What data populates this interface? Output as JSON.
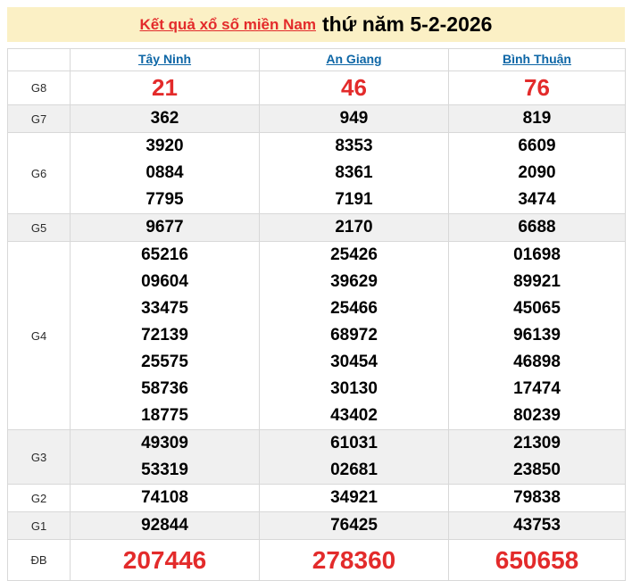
{
  "header": {
    "title_link": "Kết quả xổ số miền Nam",
    "title_rest": "thứ năm 5-2-2026"
  },
  "table": {
    "columns": [
      "Tây Ninh",
      "An Giang",
      "Bình Thuận"
    ],
    "rows": [
      {
        "label": "G8",
        "style": "big-red",
        "stripe": false,
        "values": [
          [
            "21"
          ],
          [
            "46"
          ],
          [
            "76"
          ]
        ]
      },
      {
        "label": "G7",
        "style": "normal",
        "stripe": true,
        "values": [
          [
            "362"
          ],
          [
            "949"
          ],
          [
            "819"
          ]
        ]
      },
      {
        "label": "G6",
        "style": "normal",
        "stripe": false,
        "values": [
          [
            "3920",
            "0884",
            "7795"
          ],
          [
            "8353",
            "8361",
            "7191"
          ],
          [
            "6609",
            "2090",
            "3474"
          ]
        ]
      },
      {
        "label": "G5",
        "style": "normal",
        "stripe": true,
        "values": [
          [
            "9677"
          ],
          [
            "2170"
          ],
          [
            "6688"
          ]
        ]
      },
      {
        "label": "G4",
        "style": "normal",
        "stripe": false,
        "values": [
          [
            "65216",
            "09604",
            "33475",
            "72139",
            "25575",
            "58736",
            "18775"
          ],
          [
            "25426",
            "39629",
            "25466",
            "68972",
            "30454",
            "30130",
            "43402"
          ],
          [
            "01698",
            "89921",
            "45065",
            "96139",
            "46898",
            "17474",
            "80239"
          ]
        ]
      },
      {
        "label": "G3",
        "style": "normal",
        "stripe": true,
        "values": [
          [
            "49309",
            "53319"
          ],
          [
            "61031",
            "02681"
          ],
          [
            "21309",
            "23850"
          ]
        ]
      },
      {
        "label": "G2",
        "style": "normal",
        "stripe": false,
        "values": [
          [
            "74108"
          ],
          [
            "34921"
          ],
          [
            "79838"
          ]
        ]
      },
      {
        "label": "G1",
        "style": "normal",
        "stripe": true,
        "values": [
          [
            "92844"
          ],
          [
            "76425"
          ],
          [
            "43753"
          ]
        ]
      },
      {
        "label": "ĐB",
        "style": "special-red",
        "stripe": false,
        "values": [
          [
            "207446"
          ],
          [
            "278360"
          ],
          [
            "650658"
          ]
        ]
      }
    ]
  },
  "colors": {
    "banner_bg": "#fbf0c5",
    "accent_red": "#e32b2b",
    "link_blue": "#0d66a6",
    "stripe": "#f0f0f0",
    "border": "#d8d8d8"
  }
}
